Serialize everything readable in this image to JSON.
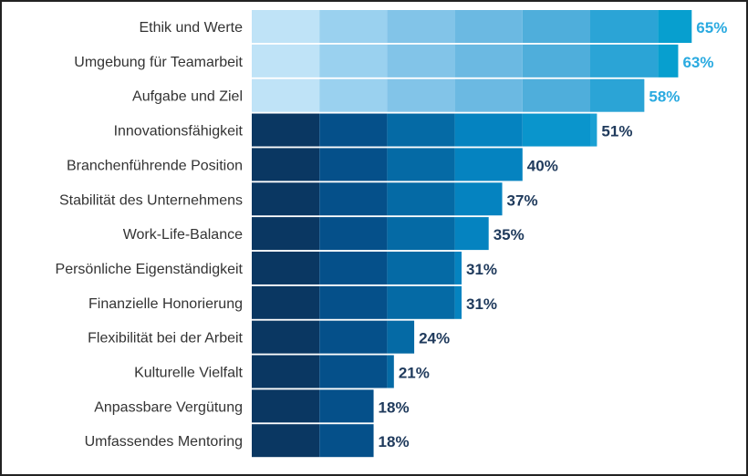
{
  "chart_data": {
    "type": "bar",
    "orientation": "horizontal",
    "title": "",
    "xlabel": "",
    "ylabel": "",
    "xlim": [
      0,
      65
    ],
    "grid": false,
    "categories": [
      "Ethik und Werte",
      "Umgebung für Teamarbeit",
      "Aufgabe und Ziel",
      "Innovationsfähigkeit",
      "Branchenführende Position",
      "Stabilität des Unternehmens",
      "Work-Life-Balance",
      "Persönliche Eigenständigkeit",
      "Finanzielle Honorierung",
      "Flexibilität bei der Arbeit",
      "Kulturelle Vielfalt",
      "Anpassbare Vergütung",
      "Umfassendes Mentoring"
    ],
    "values": [
      65,
      63,
      58,
      51,
      40,
      37,
      35,
      31,
      31,
      24,
      21,
      18,
      18
    ],
    "value_labels": [
      "65%",
      "63%",
      "58%",
      "51%",
      "40%",
      "37%",
      "35%",
      "31%",
      "31%",
      "24%",
      "21%",
      "18%",
      "18%"
    ],
    "highlighted_top_count": 3,
    "colors": {
      "light_bands": [
        "#bfe3f7",
        "#9ad1ef",
        "#82c4e8",
        "#6bb9e2",
        "#4faedb",
        "#2ba4d6",
        "#079fcf"
      ],
      "dark_bands": [
        "#0a3762",
        "#05508a",
        "#056aa5",
        "#0583c0",
        "#0a95cc",
        "#1aa0d3",
        "#2aa8d8"
      ],
      "light_label": "#2aaae0",
      "dark_label": "#1f3a5c"
    }
  }
}
